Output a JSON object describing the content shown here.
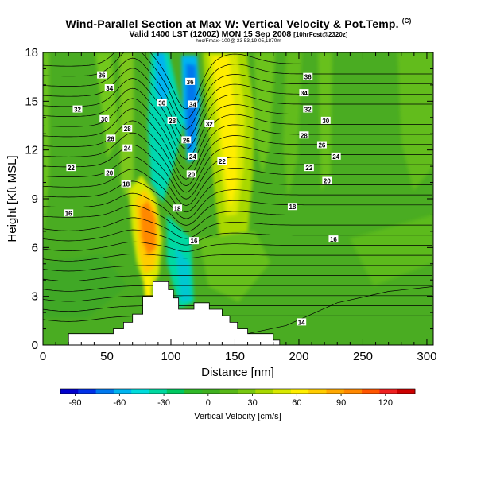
{
  "header": {
    "title": "Wind-Parallel Section at Max W: Vertical Velocity & Pot.Temp.",
    "copyright": "(C)",
    "subtitle": "Valid 1400 LST (1200Z) MON 15 Sep 2008",
    "subtitle_small": "[10hrFcst@2320z]",
    "info": "hoc/Fmax~100@ 33 53,19 05,1870m"
  },
  "chart_data": {
    "type": "heatmap",
    "x": {
      "label": "Distance [nm]",
      "range": [
        0,
        305
      ],
      "ticks": [
        0,
        50,
        100,
        150,
        200,
        250,
        300
      ],
      "tick_labels": [
        "0",
        "50",
        "100",
        "150",
        "200",
        "250",
        "300"
      ]
    },
    "y": {
      "label": "Height [Kft MSL]",
      "range": [
        0,
        18
      ],
      "ticks": [
        0,
        3,
        6,
        9,
        12,
        15,
        18
      ],
      "tick_labels": [
        "0",
        "3",
        "6",
        "9",
        "12",
        "15",
        "18"
      ]
    },
    "colorbar": {
      "label": "Vertical Velocity [cm/s]",
      "range": [
        -100,
        140
      ],
      "ticks": [
        -90,
        -60,
        -30,
        0,
        30,
        60,
        90,
        120
      ],
      "tick_labels": [
        "-90",
        "-60",
        "-30",
        "0",
        "30",
        "60",
        "90",
        "120"
      ],
      "colors": [
        "#0000cc",
        "#0030e8",
        "#0078ee",
        "#00b4f0",
        "#00dcdc",
        "#00d8a0",
        "#00c860",
        "#30b828",
        "#40b020",
        "#58b818",
        "#78c810",
        "#a8d800",
        "#d8e800",
        "#ffee00",
        "#ffcc00",
        "#ffa800",
        "#ff8800",
        "#ff5500",
        "#ee2020",
        "#cc0000"
      ]
    },
    "velocity_features": [
      {
        "kind": "updraft-core",
        "x_center": 85,
        "y_range": [
          3.5,
          9.5
        ],
        "max_cm_s": 100
      },
      {
        "kind": "downdraft-core",
        "x_center": 116,
        "y_range": [
          8,
          17.5
        ],
        "min_cm_s": -45
      },
      {
        "kind": "updraft",
        "x_center": 150,
        "y_range": [
          6,
          17
        ],
        "max_cm_s": 50
      }
    ],
    "terrain_kft": [
      [
        0,
        0
      ],
      [
        20,
        0
      ],
      [
        20,
        0.7
      ],
      [
        55,
        0.7
      ],
      [
        55,
        1.0
      ],
      [
        63,
        1.0
      ],
      [
        63,
        1.4
      ],
      [
        70,
        1.4
      ],
      [
        70,
        1.9
      ],
      [
        78,
        1.9
      ],
      [
        78,
        3.0
      ],
      [
        86,
        3.0
      ],
      [
        86,
        3.9
      ],
      [
        98,
        3.9
      ],
      [
        98,
        3.4
      ],
      [
        102,
        3.4
      ],
      [
        102,
        2.9
      ],
      [
        106,
        2.9
      ],
      [
        106,
        2.2
      ],
      [
        118,
        2.2
      ],
      [
        118,
        2.6
      ],
      [
        130,
        2.6
      ],
      [
        130,
        2.2
      ],
      [
        140,
        2.2
      ],
      [
        140,
        1.8
      ],
      [
        146,
        1.8
      ],
      [
        146,
        1.4
      ],
      [
        152,
        1.4
      ],
      [
        152,
        1.0
      ],
      [
        160,
        1.0
      ],
      [
        160,
        0.7
      ],
      [
        180,
        0.7
      ],
      [
        180,
        0.3
      ],
      [
        185,
        0.3
      ],
      [
        185,
        0
      ]
    ],
    "potential_temperature_labels": [
      {
        "value": "36",
        "x": 46,
        "y": 16.6
      },
      {
        "value": "34",
        "x": 52,
        "y": 15.8
      },
      {
        "value": "32",
        "x": 27,
        "y": 14.5
      },
      {
        "value": "30",
        "x": 48,
        "y": 13.9
      },
      {
        "value": "28",
        "x": 66,
        "y": 13.3
      },
      {
        "value": "26",
        "x": 53,
        "y": 12.7
      },
      {
        "value": "24",
        "x": 66,
        "y": 12.1
      },
      {
        "value": "22",
        "x": 22,
        "y": 10.9
      },
      {
        "value": "20",
        "x": 52,
        "y": 10.6
      },
      {
        "value": "18",
        "x": 65,
        "y": 9.9
      },
      {
        "value": "16",
        "x": 20,
        "y": 8.1
      },
      {
        "value": "36",
        "x": 115,
        "y": 16.2
      },
      {
        "value": "30",
        "x": 93,
        "y": 14.9
      },
      {
        "value": "34",
        "x": 117,
        "y": 14.8
      },
      {
        "value": "28",
        "x": 101,
        "y": 13.8
      },
      {
        "value": "26",
        "x": 112,
        "y": 12.6
      },
      {
        "value": "24",
        "x": 117,
        "y": 11.6
      },
      {
        "value": "22",
        "x": 140,
        "y": 11.3
      },
      {
        "value": "20",
        "x": 116,
        "y": 10.5
      },
      {
        "value": "18",
        "x": 105,
        "y": 8.4
      },
      {
        "value": "16",
        "x": 118,
        "y": 6.4
      },
      {
        "value": "32",
        "x": 130,
        "y": 13.6
      },
      {
        "value": "36",
        "x": 207,
        "y": 16.5
      },
      {
        "value": "34",
        "x": 204,
        "y": 15.5
      },
      {
        "value": "32",
        "x": 207,
        "y": 14.5
      },
      {
        "value": "30",
        "x": 221,
        "y": 13.8
      },
      {
        "value": "28",
        "x": 204,
        "y": 12.9
      },
      {
        "value": "26",
        "x": 218,
        "y": 12.3
      },
      {
        "value": "24",
        "x": 229,
        "y": 11.6
      },
      {
        "value": "22",
        "x": 208,
        "y": 10.9
      },
      {
        "value": "20",
        "x": 222,
        "y": 10.1
      },
      {
        "value": "18",
        "x": 195,
        "y": 8.5
      },
      {
        "value": "16",
        "x": 227,
        "y": 6.5
      },
      {
        "value": "14",
        "x": 202,
        "y": 1.4
      }
    ]
  }
}
